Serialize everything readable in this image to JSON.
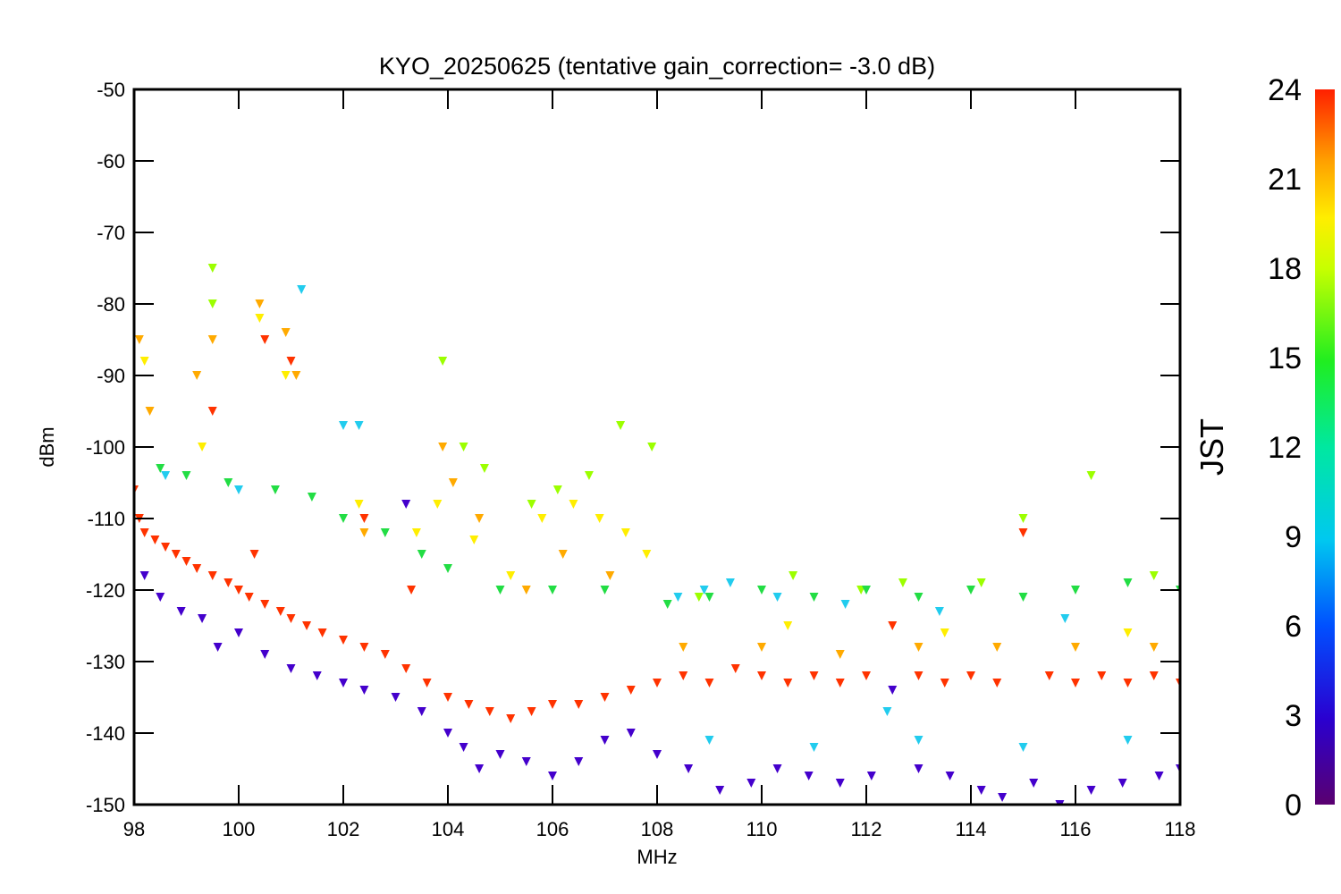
{
  "chart_data": {
    "type": "scatter",
    "title": "KYO_20250625 (tentative gain_correction= -3.0 dB)",
    "xlabel": "MHz",
    "ylabel": "dBm",
    "xlim": [
      98,
      118
    ],
    "ylim": [
      -150,
      -50
    ],
    "x_ticks": [
      "98",
      "100",
      "102",
      "104",
      "106",
      "108",
      "110",
      "112",
      "114",
      "116",
      "118"
    ],
    "y_ticks": [
      "-50",
      "-60",
      "-70",
      "-80",
      "-90",
      "-100",
      "-110",
      "-120",
      "-130",
      "-140",
      "-150"
    ],
    "grid": false,
    "colorbar": {
      "label": "JST",
      "range": [
        0,
        24
      ],
      "ticks": [
        "24",
        "21",
        "18",
        "15",
        "12",
        "9",
        "6",
        "3",
        "0"
      ],
      "colormap": "rainbow"
    },
    "marker": "asterisk/triangle",
    "series": [
      {
        "color": "#ff3300",
        "points": [
          [
            98.0,
            -106
          ],
          [
            98.1,
            -110
          ],
          [
            98.2,
            -112
          ],
          [
            98.4,
            -113
          ],
          [
            98.6,
            -114
          ],
          [
            98.8,
            -115
          ],
          [
            99.0,
            -116
          ],
          [
            99.2,
            -117
          ],
          [
            99.5,
            -118
          ],
          [
            99.8,
            -119
          ],
          [
            100.0,
            -120
          ],
          [
            100.2,
            -121
          ],
          [
            100.3,
            -115
          ],
          [
            100.5,
            -122
          ],
          [
            100.8,
            -123
          ],
          [
            101.0,
            -124
          ],
          [
            101.3,
            -125
          ],
          [
            101.6,
            -126
          ],
          [
            102.0,
            -127
          ],
          [
            102.4,
            -128
          ],
          [
            102.8,
            -129
          ],
          [
            103.2,
            -131
          ],
          [
            103.6,
            -133
          ],
          [
            104.0,
            -135
          ],
          [
            104.4,
            -136
          ],
          [
            104.8,
            -137
          ],
          [
            105.2,
            -138
          ],
          [
            105.6,
            -137
          ],
          [
            106.0,
            -136
          ],
          [
            106.5,
            -136
          ],
          [
            107.0,
            -135
          ],
          [
            107.5,
            -134
          ],
          [
            108.0,
            -133
          ],
          [
            108.5,
            -132
          ],
          [
            109.0,
            -133
          ],
          [
            109.5,
            -131
          ],
          [
            110.0,
            -132
          ],
          [
            110.5,
            -133
          ],
          [
            111.0,
            -132
          ],
          [
            111.5,
            -133
          ],
          [
            112.0,
            -132
          ],
          [
            112.5,
            -125
          ],
          [
            113.0,
            -132
          ],
          [
            113.5,
            -133
          ],
          [
            114.0,
            -132
          ],
          [
            114.5,
            -133
          ],
          [
            115.0,
            -112
          ],
          [
            115.5,
            -132
          ],
          [
            116.0,
            -133
          ],
          [
            116.5,
            -132
          ],
          [
            117.0,
            -133
          ],
          [
            117.5,
            -132
          ],
          [
            118.0,
            -133
          ],
          [
            100.5,
            -85
          ],
          [
            101.0,
            -88
          ],
          [
            99.5,
            -95
          ],
          [
            102.4,
            -110
          ],
          [
            103.3,
            -120
          ]
        ]
      },
      {
        "color": "#ffaa00",
        "points": [
          [
            98.1,
            -85
          ],
          [
            98.3,
            -95
          ],
          [
            99.2,
            -90
          ],
          [
            99.5,
            -85
          ],
          [
            100.4,
            -80
          ],
          [
            100.9,
            -84
          ],
          [
            101.1,
            -90
          ],
          [
            102.4,
            -112
          ],
          [
            103.9,
            -100
          ],
          [
            104.1,
            -105
          ],
          [
            104.6,
            -110
          ],
          [
            105.5,
            -120
          ],
          [
            106.2,
            -115
          ],
          [
            107.1,
            -118
          ],
          [
            108.5,
            -128
          ],
          [
            110.0,
            -128
          ],
          [
            111.5,
            -129
          ],
          [
            113.0,
            -128
          ],
          [
            114.5,
            -128
          ],
          [
            116.0,
            -128
          ],
          [
            117.5,
            -128
          ]
        ]
      },
      {
        "color": "#ffee00",
        "points": [
          [
            98.2,
            -88
          ],
          [
            99.3,
            -100
          ],
          [
            100.4,
            -82
          ],
          [
            100.9,
            -90
          ],
          [
            102.3,
            -108
          ],
          [
            103.4,
            -112
          ],
          [
            103.8,
            -108
          ],
          [
            104.5,
            -113
          ],
          [
            105.2,
            -118
          ],
          [
            105.8,
            -110
          ],
          [
            106.4,
            -108
          ],
          [
            106.9,
            -110
          ],
          [
            107.4,
            -112
          ],
          [
            107.8,
            -115
          ],
          [
            110.5,
            -125
          ],
          [
            113.5,
            -126
          ],
          [
            117.0,
            -126
          ]
        ]
      },
      {
        "color": "#9cff00",
        "points": [
          [
            99.5,
            -75
          ],
          [
            99.5,
            -80
          ],
          [
            103.9,
            -88
          ],
          [
            104.3,
            -100
          ],
          [
            104.7,
            -103
          ],
          [
            105.6,
            -108
          ],
          [
            106.1,
            -106
          ],
          [
            106.7,
            -104
          ],
          [
            107.3,
            -97
          ],
          [
            107.9,
            -100
          ],
          [
            108.8,
            -121
          ],
          [
            110.6,
            -118
          ],
          [
            111.9,
            -120
          ],
          [
            112.7,
            -119
          ],
          [
            114.2,
            -119
          ],
          [
            115.0,
            -110
          ],
          [
            116.3,
            -104
          ],
          [
            117.5,
            -118
          ]
        ]
      },
      {
        "color": "#22dd44",
        "points": [
          [
            98.5,
            -103
          ],
          [
            99.0,
            -104
          ],
          [
            99.8,
            -105
          ],
          [
            100.7,
            -106
          ],
          [
            101.4,
            -107
          ],
          [
            102.0,
            -110
          ],
          [
            102.8,
            -112
          ],
          [
            103.5,
            -115
          ],
          [
            104.0,
            -117
          ],
          [
            105.0,
            -120
          ],
          [
            106.0,
            -120
          ],
          [
            107.0,
            -120
          ],
          [
            108.2,
            -122
          ],
          [
            109.0,
            -121
          ],
          [
            110.0,
            -120
          ],
          [
            111.0,
            -121
          ],
          [
            112.0,
            -120
          ],
          [
            113.0,
            -121
          ],
          [
            114.0,
            -120
          ],
          [
            115.0,
            -121
          ],
          [
            116.0,
            -120
          ],
          [
            117.0,
            -119
          ],
          [
            118.0,
            -120
          ]
        ]
      },
      {
        "color": "#22ccee",
        "points": [
          [
            98.6,
            -104
          ],
          [
            100.0,
            -106
          ],
          [
            101.2,
            -78
          ],
          [
            102.0,
            -97
          ],
          [
            102.3,
            -97
          ],
          [
            108.4,
            -121
          ],
          [
            108.9,
            -120
          ],
          [
            109.4,
            -119
          ],
          [
            110.3,
            -121
          ],
          [
            111.6,
            -122
          ],
          [
            113.4,
            -123
          ],
          [
            115.8,
            -124
          ],
          [
            112.4,
            -137
          ],
          [
            109.0,
            -141
          ],
          [
            111.0,
            -142
          ],
          [
            113.0,
            -141
          ],
          [
            115.0,
            -142
          ],
          [
            117.0,
            -141
          ]
        ]
      },
      {
        "color": "#4400cc",
        "points": [
          [
            98.2,
            -118
          ],
          [
            98.5,
            -121
          ],
          [
            98.9,
            -123
          ],
          [
            99.3,
            -124
          ],
          [
            99.6,
            -128
          ],
          [
            100.0,
            -126
          ],
          [
            100.5,
            -129
          ],
          [
            101.0,
            -131
          ],
          [
            101.5,
            -132
          ],
          [
            102.0,
            -133
          ],
          [
            102.4,
            -134
          ],
          [
            103.0,
            -135
          ],
          [
            103.2,
            -108
          ],
          [
            103.5,
            -137
          ],
          [
            104.0,
            -140
          ],
          [
            104.3,
            -142
          ],
          [
            104.6,
            -145
          ],
          [
            105.0,
            -143
          ],
          [
            105.5,
            -144
          ],
          [
            106.0,
            -146
          ],
          [
            106.5,
            -144
          ],
          [
            107.0,
            -141
          ],
          [
            107.5,
            -140
          ],
          [
            108.0,
            -143
          ],
          [
            108.6,
            -145
          ],
          [
            109.2,
            -148
          ],
          [
            109.8,
            -147
          ],
          [
            110.3,
            -145
          ],
          [
            110.9,
            -146
          ],
          [
            111.5,
            -147
          ],
          [
            112.1,
            -146
          ],
          [
            112.5,
            -134
          ],
          [
            113.0,
            -145
          ],
          [
            113.6,
            -146
          ],
          [
            114.2,
            -148
          ],
          [
            114.6,
            -149
          ],
          [
            115.2,
            -147
          ],
          [
            115.7,
            -150
          ],
          [
            116.3,
            -148
          ],
          [
            116.9,
            -147
          ],
          [
            117.6,
            -146
          ],
          [
            118.0,
            -145
          ]
        ]
      }
    ]
  }
}
